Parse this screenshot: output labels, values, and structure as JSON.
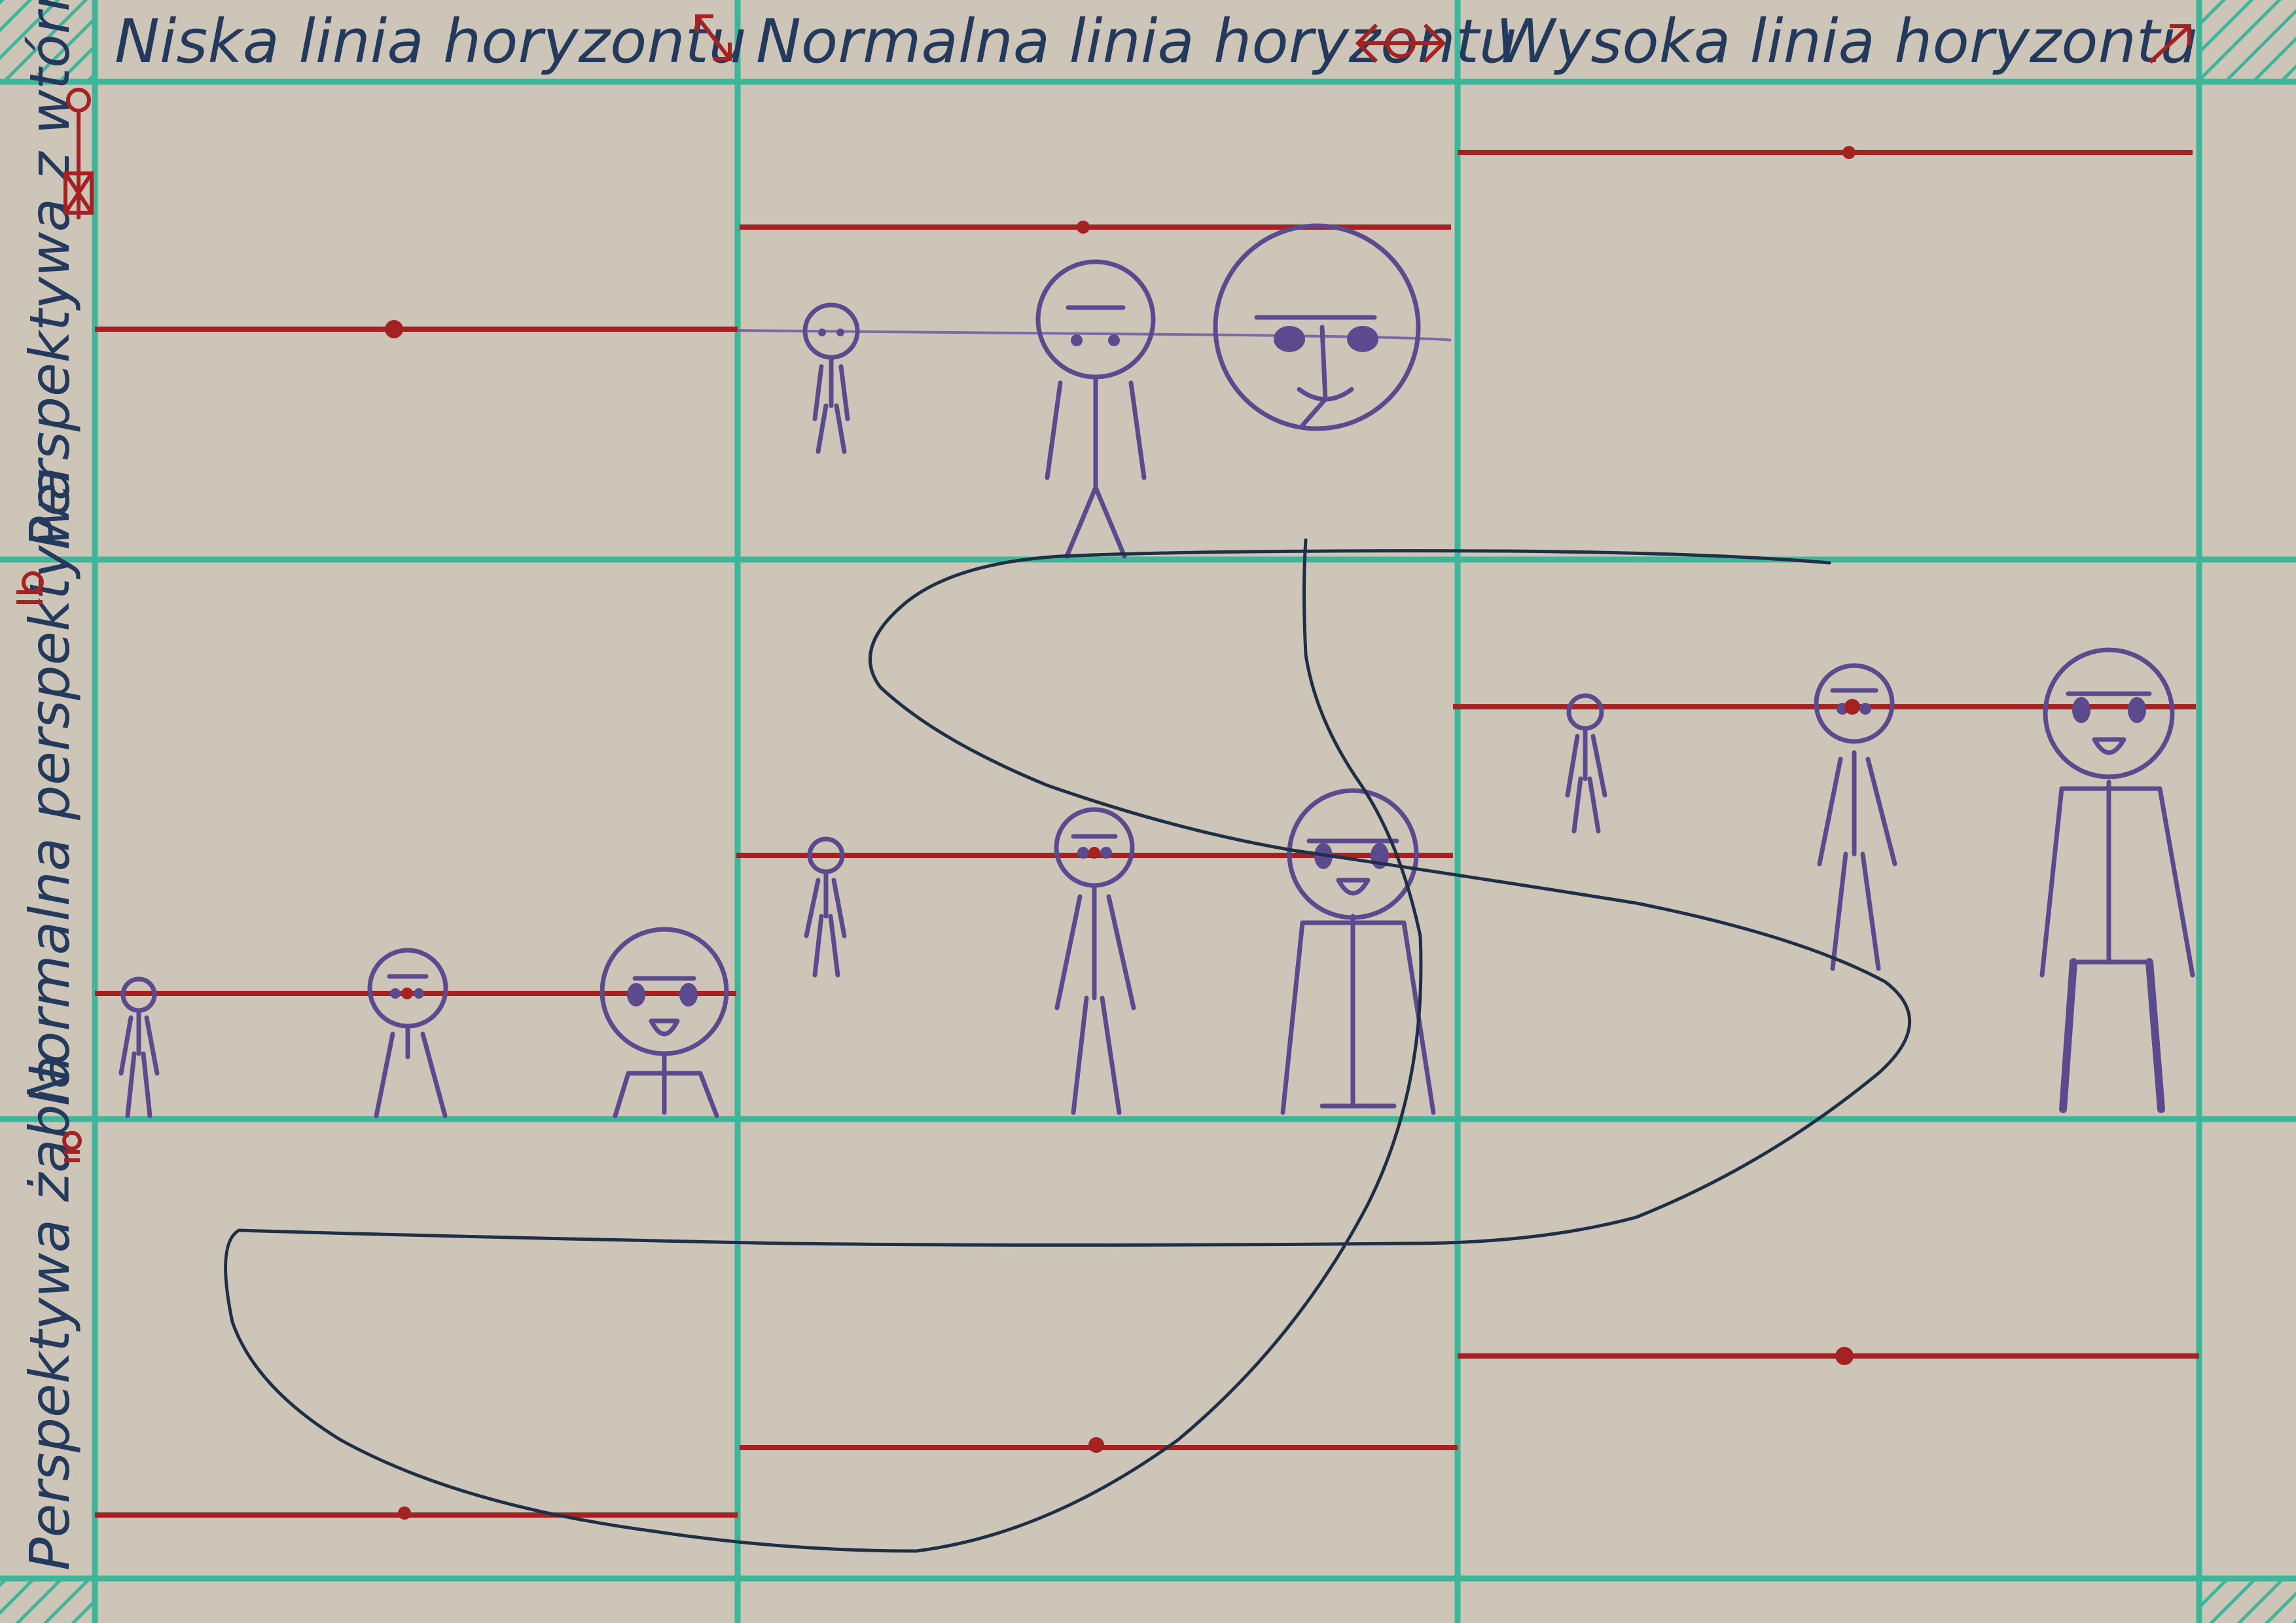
{
  "columns": [
    {
      "label": "Niska linia horyzontu"
    },
    {
      "label": "Normalna linia horyzontu"
    },
    {
      "label": "Wysoka linia horyzontu"
    }
  ],
  "rows": [
    {
      "label": "Perspektywa z wtórnego kątu"
    },
    {
      "label": "Normalna perspektywa"
    },
    {
      "label": "Perspektywa żabia"
    }
  ],
  "colors": {
    "background": "#cdc5b8",
    "grid": "#3fb59a",
    "horizon": "#a52222",
    "figures": "#5b4a8e",
    "text": "#243a5c",
    "overlay_stroke": "#1f2f45"
  },
  "icons": [
    "diagonal-arrow-icon",
    "double-arrow-icon",
    "stick-figure-icon",
    "hatched-corner"
  ]
}
